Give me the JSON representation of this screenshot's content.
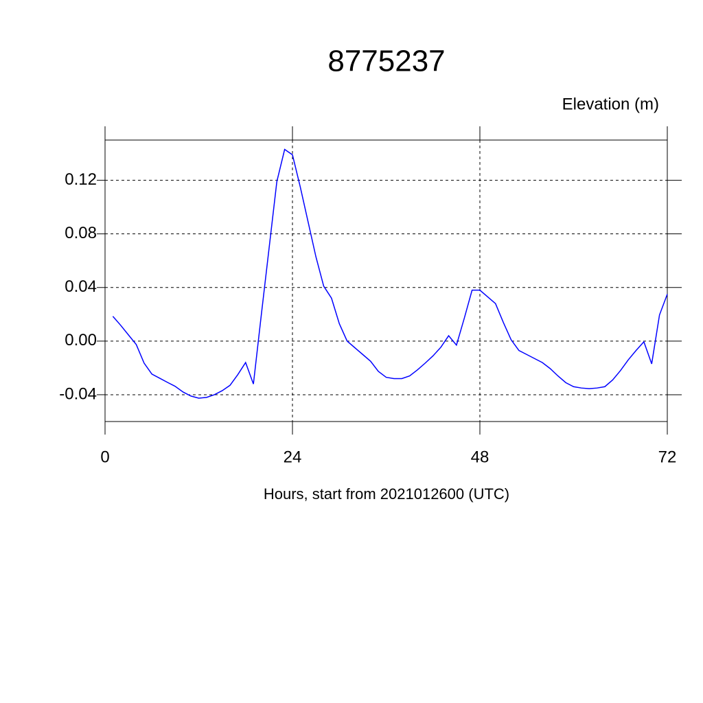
{
  "chart_data": {
    "type": "line",
    "title": "8775237",
    "y_label": "Elevation (m)",
    "x_label": "Hours, start from 2021012600 (UTC)",
    "xlim": [
      0,
      72
    ],
    "xticks": [
      0,
      24,
      48,
      72
    ],
    "ylim": [
      -0.06,
      0.15
    ],
    "yticks": [
      -0.04,
      {
        "value": 0,
        "label": "0.00"
      },
      0.04,
      0.08,
      0.12
    ],
    "grid": true,
    "x": [
      1,
      2,
      3,
      4,
      5,
      6,
      7,
      8,
      9,
      10,
      11,
      12,
      13,
      14,
      15,
      16,
      17,
      18,
      19,
      20,
      21,
      22,
      23,
      24,
      25,
      26,
      27,
      28,
      29,
      30,
      31,
      32,
      33,
      34,
      35,
      36,
      37,
      38,
      39,
      40,
      41,
      42,
      43,
      44,
      45,
      46,
      47,
      48,
      49,
      50,
      51,
      52,
      53,
      54,
      55,
      56,
      57,
      58,
      59,
      60,
      61,
      62,
      63,
      64,
      65,
      66,
      67,
      68,
      69,
      70,
      71,
      72
    ],
    "series": [
      {
        "color": "#0000ff",
        "values": [
          0.0185,
          0.0118,
          0.0046,
          -0.0026,
          -0.0164,
          -0.0246,
          -0.0277,
          -0.0308,
          -0.0338,
          -0.038,
          -0.041,
          -0.0426,
          -0.042,
          -0.04,
          -0.037,
          -0.033,
          -0.025,
          -0.016,
          -0.032,
          0.019,
          0.069,
          0.119,
          0.143,
          0.139,
          0.115,
          0.089,
          0.063,
          0.041,
          0.032,
          0.013,
          0.0,
          -0.005,
          -0.01,
          -0.015,
          -0.0226,
          -0.027,
          -0.028,
          -0.028,
          -0.026,
          -0.0215,
          -0.0164,
          -0.011,
          -0.0046,
          0.004,
          -0.003,
          0.017,
          0.038,
          0.038,
          0.033,
          0.028,
          0.014,
          0.001,
          -0.007,
          -0.01,
          -0.013,
          -0.016,
          -0.0205,
          -0.026,
          -0.031,
          -0.034,
          -0.035,
          -0.0355,
          -0.035,
          -0.034,
          -0.029,
          -0.022,
          -0.014,
          -0.007,
          -0.0005,
          -0.017,
          0.0195,
          0.035
        ]
      }
    ]
  }
}
